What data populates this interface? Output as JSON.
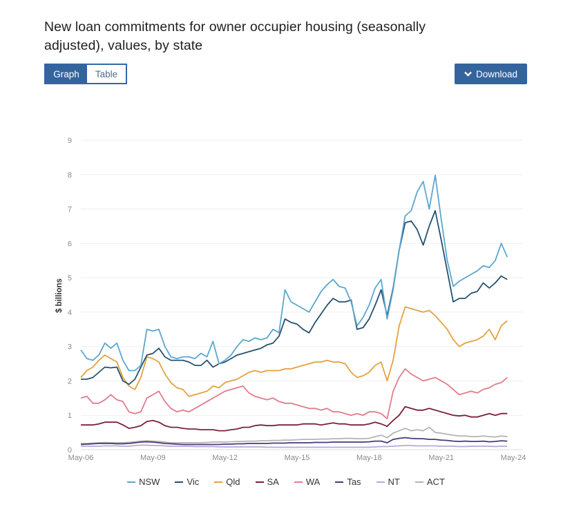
{
  "title": "New loan commitments for owner occupier housing (seasonally adjusted), values, by state",
  "view_toggle": {
    "graph_label": "Graph",
    "table_label": "Table",
    "selected": "Graph"
  },
  "download_label": "Download",
  "download_icon": "chevron-down-icon",
  "chart_data": {
    "type": "line",
    "title": "New loan commitments for owner occupier housing (seasonally adjusted), values, by state",
    "xlabel": "",
    "ylabel": "$ billions",
    "ylim": [
      0,
      9
    ],
    "yticks": [
      "0",
      "1",
      "2",
      "3",
      "4",
      "5",
      "6",
      "7",
      "8",
      "9"
    ],
    "xticks": [
      "May-06",
      "May-09",
      "May-12",
      "May-15",
      "May-18",
      "May-21",
      "May-24"
    ],
    "x_start": "May-06",
    "x_interval_months": 3,
    "grid": true,
    "legend_position": "bottom",
    "series": [
      {
        "name": "NSW",
        "color": "#5ba6d0",
        "values": [
          2.9,
          2.65,
          2.6,
          2.75,
          3.1,
          2.95,
          3.1,
          2.6,
          2.3,
          2.3,
          2.45,
          3.5,
          3.45,
          3.5,
          3.0,
          2.7,
          2.65,
          2.7,
          2.7,
          2.65,
          2.8,
          2.7,
          3.15,
          2.5,
          2.6,
          2.75,
          3.0,
          3.2,
          3.15,
          3.25,
          3.2,
          3.25,
          3.5,
          3.4,
          4.65,
          4.3,
          4.2,
          4.1,
          4.0,
          4.3,
          4.6,
          4.8,
          4.95,
          4.75,
          4.7,
          4.3,
          3.6,
          3.85,
          4.2,
          4.7,
          4.95,
          3.8,
          4.65,
          5.8,
          6.8,
          6.95,
          7.5,
          7.8,
          7.0,
          7.98,
          6.7,
          5.5,
          4.75,
          4.9,
          5.0,
          5.1,
          5.2,
          5.35,
          5.3,
          5.5,
          6.0,
          5.6
        ]
      },
      {
        "name": "Vic",
        "color": "#24506e",
        "values": [
          2.05,
          2.05,
          2.1,
          2.25,
          2.4,
          2.38,
          2.4,
          2.0,
          1.9,
          2.05,
          2.4,
          2.75,
          2.8,
          2.95,
          2.7,
          2.6,
          2.6,
          2.6,
          2.55,
          2.45,
          2.45,
          2.6,
          2.4,
          2.5,
          2.55,
          2.65,
          2.75,
          2.8,
          2.85,
          2.9,
          2.95,
          3.05,
          3.1,
          3.3,
          3.8,
          3.7,
          3.65,
          3.5,
          3.4,
          3.7,
          3.95,
          4.2,
          4.4,
          4.3,
          4.3,
          4.35,
          3.5,
          3.55,
          3.8,
          4.2,
          4.65,
          3.9,
          4.7,
          5.8,
          6.6,
          6.65,
          6.4,
          5.95,
          6.5,
          6.95,
          6.1,
          5.2,
          4.3,
          4.4,
          4.4,
          4.55,
          4.6,
          4.85,
          4.7,
          4.85,
          5.05,
          4.95
        ]
      },
      {
        "name": "Qld",
        "color": "#e3a13f",
        "values": [
          2.1,
          2.3,
          2.4,
          2.6,
          2.75,
          2.65,
          2.55,
          2.1,
          1.85,
          1.75,
          2.1,
          2.7,
          2.65,
          2.55,
          2.2,
          1.95,
          1.8,
          1.75,
          1.55,
          1.6,
          1.65,
          1.7,
          1.85,
          1.8,
          1.95,
          2.0,
          2.05,
          2.15,
          2.25,
          2.3,
          2.25,
          2.3,
          2.3,
          2.3,
          2.35,
          2.35,
          2.4,
          2.45,
          2.5,
          2.55,
          2.55,
          2.6,
          2.55,
          2.55,
          2.5,
          2.25,
          2.1,
          2.15,
          2.25,
          2.45,
          2.55,
          2.0,
          2.6,
          3.6,
          4.15,
          4.1,
          4.05,
          4.0,
          4.05,
          3.9,
          3.7,
          3.5,
          3.2,
          3.0,
          3.1,
          3.15,
          3.2,
          3.3,
          3.5,
          3.2,
          3.6,
          3.75
        ]
      },
      {
        "name": "SA",
        "color": "#7b2038",
        "values": [
          0.72,
          0.72,
          0.72,
          0.75,
          0.8,
          0.8,
          0.8,
          0.72,
          0.62,
          0.65,
          0.7,
          0.82,
          0.85,
          0.8,
          0.7,
          0.65,
          0.65,
          0.62,
          0.6,
          0.6,
          0.58,
          0.58,
          0.58,
          0.55,
          0.55,
          0.58,
          0.6,
          0.65,
          0.65,
          0.7,
          0.72,
          0.7,
          0.7,
          0.72,
          0.72,
          0.72,
          0.72,
          0.75,
          0.75,
          0.75,
          0.72,
          0.75,
          0.78,
          0.75,
          0.75,
          0.72,
          0.72,
          0.72,
          0.75,
          0.8,
          0.75,
          0.68,
          0.85,
          1.0,
          1.25,
          1.2,
          1.15,
          1.15,
          1.2,
          1.15,
          1.1,
          1.05,
          1.0,
          0.98,
          1.0,
          0.95,
          0.95,
          1.0,
          1.05,
          1.0,
          1.05,
          1.05
        ]
      },
      {
        "name": "WA",
        "color": "#e37a8b",
        "values": [
          1.5,
          1.55,
          1.35,
          1.35,
          1.45,
          1.6,
          1.45,
          1.4,
          1.1,
          1.05,
          1.1,
          1.5,
          1.6,
          1.7,
          1.4,
          1.2,
          1.1,
          1.15,
          1.1,
          1.2,
          1.3,
          1.4,
          1.5,
          1.6,
          1.7,
          1.75,
          1.8,
          1.85,
          1.65,
          1.55,
          1.5,
          1.45,
          1.5,
          1.4,
          1.35,
          1.35,
          1.3,
          1.25,
          1.2,
          1.2,
          1.15,
          1.2,
          1.1,
          1.1,
          1.05,
          1.0,
          1.05,
          1.0,
          1.1,
          1.1,
          1.05,
          0.9,
          1.7,
          2.1,
          2.35,
          2.2,
          2.1,
          2.0,
          2.05,
          2.1,
          2.0,
          1.9,
          1.75,
          1.6,
          1.65,
          1.7,
          1.65,
          1.75,
          1.8,
          1.9,
          1.95,
          2.1
        ]
      },
      {
        "name": "Tas",
        "color": "#463a78",
        "values": [
          0.15,
          0.16,
          0.17,
          0.18,
          0.18,
          0.18,
          0.17,
          0.17,
          0.18,
          0.2,
          0.22,
          0.23,
          0.22,
          0.2,
          0.18,
          0.17,
          0.16,
          0.15,
          0.15,
          0.15,
          0.15,
          0.15,
          0.15,
          0.15,
          0.16,
          0.16,
          0.17,
          0.17,
          0.18,
          0.18,
          0.18,
          0.18,
          0.19,
          0.19,
          0.19,
          0.2,
          0.2,
          0.2,
          0.2,
          0.21,
          0.21,
          0.21,
          0.22,
          0.22,
          0.22,
          0.22,
          0.22,
          0.22,
          0.23,
          0.25,
          0.25,
          0.2,
          0.3,
          0.33,
          0.35,
          0.33,
          0.32,
          0.32,
          0.3,
          0.3,
          0.28,
          0.27,
          0.25,
          0.24,
          0.25,
          0.24,
          0.24,
          0.25,
          0.23,
          0.24,
          0.26,
          0.25
        ]
      },
      {
        "name": "NT",
        "color": "#b9a6d8",
        "values": [
          0.1,
          0.1,
          0.1,
          0.1,
          0.11,
          0.11,
          0.11,
          0.1,
          0.1,
          0.12,
          0.13,
          0.13,
          0.12,
          0.12,
          0.11,
          0.1,
          0.1,
          0.1,
          0.1,
          0.09,
          0.09,
          0.09,
          0.09,
          0.08,
          0.08,
          0.08,
          0.08,
          0.08,
          0.08,
          0.08,
          0.08,
          0.07,
          0.07,
          0.07,
          0.07,
          0.07,
          0.07,
          0.07,
          0.07,
          0.07,
          0.07,
          0.07,
          0.07,
          0.07,
          0.07,
          0.07,
          0.07,
          0.07,
          0.07,
          0.08,
          0.09,
          0.09,
          0.1,
          0.11,
          0.12,
          0.12,
          0.11,
          0.11,
          0.11,
          0.11,
          0.1,
          0.1,
          0.1,
          0.09,
          0.09,
          0.1,
          0.1,
          0.1,
          0.1,
          0.09,
          0.1,
          0.1
        ]
      },
      {
        "name": "ACT",
        "color": "#b3b3b3",
        "values": [
          0.18,
          0.18,
          0.19,
          0.2,
          0.21,
          0.2,
          0.2,
          0.2,
          0.21,
          0.23,
          0.25,
          0.26,
          0.25,
          0.24,
          0.22,
          0.2,
          0.2,
          0.2,
          0.2,
          0.2,
          0.2,
          0.21,
          0.22,
          0.22,
          0.22,
          0.23,
          0.24,
          0.24,
          0.25,
          0.25,
          0.26,
          0.26,
          0.27,
          0.27,
          0.28,
          0.28,
          0.29,
          0.3,
          0.3,
          0.3,
          0.31,
          0.31,
          0.32,
          0.32,
          0.33,
          0.33,
          0.32,
          0.32,
          0.33,
          0.38,
          0.42,
          0.35,
          0.48,
          0.55,
          0.62,
          0.55,
          0.58,
          0.55,
          0.65,
          0.5,
          0.48,
          0.45,
          0.42,
          0.4,
          0.4,
          0.38,
          0.38,
          0.4,
          0.38,
          0.37,
          0.4,
          0.38
        ]
      }
    ]
  }
}
